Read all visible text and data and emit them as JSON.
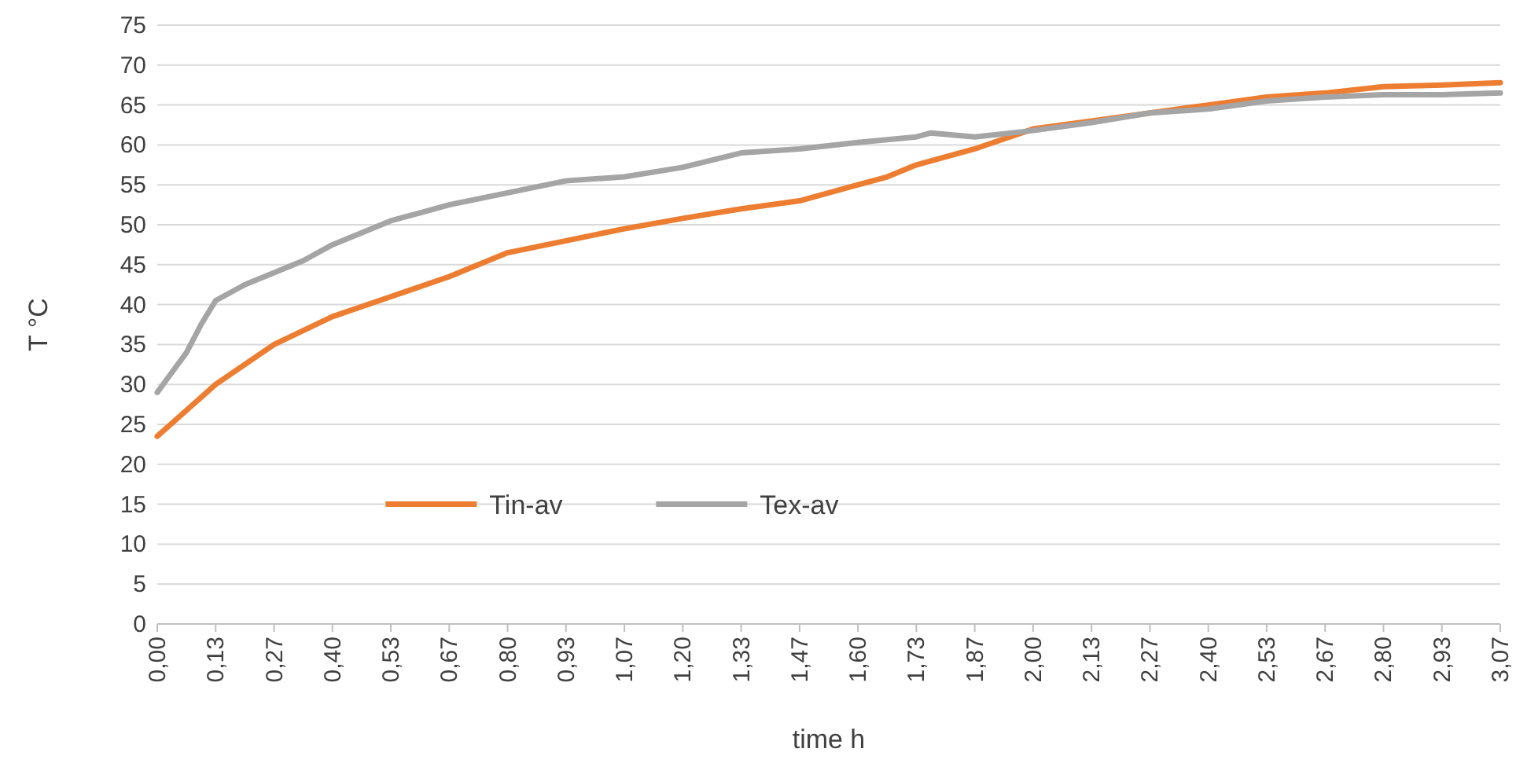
{
  "chart_data": {
    "type": "line",
    "xlabel": "time h",
    "ylabel": "T °C",
    "xlim": [
      0,
      3.0667
    ],
    "ylim": [
      0,
      75
    ],
    "yticks": [
      0,
      5,
      10,
      15,
      20,
      25,
      30,
      35,
      40,
      45,
      50,
      55,
      60,
      65,
      70,
      75
    ],
    "xticks": [
      {
        "value": 0,
        "label": "0,00"
      },
      {
        "value": 0.1333,
        "label": "0,13"
      },
      {
        "value": 0.2667,
        "label": "0,27"
      },
      {
        "value": 0.4,
        "label": "0,40"
      },
      {
        "value": 0.5333,
        "label": "0,53"
      },
      {
        "value": 0.6667,
        "label": "0,67"
      },
      {
        "value": 0.8,
        "label": "0,80"
      },
      {
        "value": 0.9333,
        "label": "0,93"
      },
      {
        "value": 1.0667,
        "label": "1,07"
      },
      {
        "value": 1.2,
        "label": "1,20"
      },
      {
        "value": 1.3333,
        "label": "1,33"
      },
      {
        "value": 1.4667,
        "label": "1,47"
      },
      {
        "value": 1.6,
        "label": "1,60"
      },
      {
        "value": 1.7333,
        "label": "1,73"
      },
      {
        "value": 1.8667,
        "label": "1,87"
      },
      {
        "value": 2,
        "label": "2,00"
      },
      {
        "value": 2.1333,
        "label": "2,13"
      },
      {
        "value": 2.2667,
        "label": "2,27"
      },
      {
        "value": 2.4,
        "label": "2,40"
      },
      {
        "value": 2.5333,
        "label": "2,53"
      },
      {
        "value": 2.6667,
        "label": "2,67"
      },
      {
        "value": 2.8,
        "label": "2,80"
      },
      {
        "value": 2.9333,
        "label": "2,93"
      },
      {
        "value": 3.0667,
        "label": "3,07"
      }
    ],
    "grid": "y",
    "legend": "bottom left",
    "marker": "none",
    "line_style": "solid",
    "series": [
      {
        "name": "Tin-av",
        "color": "#ed7d31",
        "x": [
          0,
          0.1333,
          0.2667,
          0.4,
          0.5333,
          0.6667,
          0.8,
          0.9333,
          1.0667,
          1.2,
          1.3333,
          1.4667,
          1.6,
          1.6667,
          1.7333,
          1.8667,
          2,
          2.1333,
          2.2667,
          2.4,
          2.5333,
          2.6667,
          2.8,
          2.9333,
          3.0667
        ],
        "values": [
          23.5,
          30,
          35,
          38.5,
          41,
          43.5,
          46.5,
          48,
          49.5,
          50.8,
          52,
          53,
          55,
          56,
          57.5,
          59.5,
          62,
          63,
          64,
          65,
          66,
          66.5,
          67.3,
          67.5,
          67.8
        ]
      },
      {
        "name": "Tex-av",
        "color": "#a5a5a5",
        "x": [
          0,
          0.0333,
          0.0667,
          0.1,
          0.1333,
          0.2,
          0.2667,
          0.3333,
          0.4,
          0.4667,
          0.5333,
          0.6,
          0.6667,
          0.8,
          0.9333,
          1.0667,
          1.2,
          1.3333,
          1.4667,
          1.6,
          1.7333,
          1.7667,
          1.8667,
          2,
          2.1333,
          2.2667,
          2.4,
          2.5333,
          2.6667,
          2.8,
          2.9333,
          3.0667
        ],
        "values": [
          29,
          31.5,
          34,
          37.5,
          40.5,
          42.5,
          44,
          45.5,
          47.5,
          49,
          50.5,
          51.5,
          52.5,
          54,
          55.5,
          56,
          57.2,
          59,
          59.5,
          60.3,
          61,
          61.5,
          61,
          61.8,
          62.8,
          64,
          64.5,
          65.5,
          66,
          66.3,
          66.3,
          66.5
        ]
      }
    ]
  }
}
